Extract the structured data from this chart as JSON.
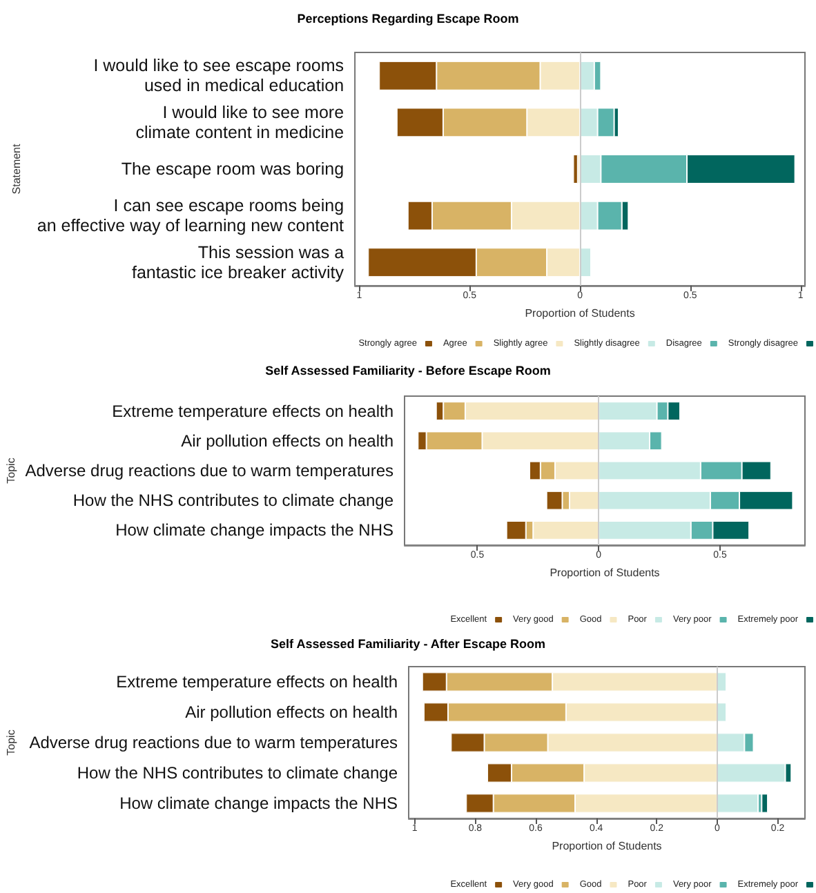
{
  "chart_data": [
    {
      "type": "bar",
      "orientation": "horizontal",
      "stacked": true,
      "title": "Perceptions Regarding Escape Room",
      "xlabel": "Proportion of Students",
      "ylabel": "Statement",
      "legend": "bottom right",
      "grid": false,
      "categories": [
        "I would like to see escape rooms\nused in medical education",
        "I would like to see more\nclimate content in medicine",
        "The escape room was boring",
        "I can see escape rooms being\nan effective way of learning new content",
        "This session was a\nfantastic ice breaker activity"
      ],
      "series": [
        {
          "name": "Strongly agree",
          "color": "#8c510a",
          "values": [
            -0.26,
            -0.21,
            -0.02,
            -0.11,
            -0.49
          ]
        },
        {
          "name": "Agree",
          "color": "#d8b365",
          "values": [
            -0.47,
            -0.38,
            null,
            -0.36,
            -0.32
          ]
        },
        {
          "name": "Slightly agree",
          "color": "#f6e8c3",
          "values": [
            -0.18,
            -0.24,
            -0.01,
            -0.31,
            -0.15
          ]
        },
        {
          "name": "Slightly disagree",
          "color": "#c7eae5",
          "values": [
            0.065,
            0.08,
            0.095,
            0.08,
            0.05
          ]
        },
        {
          "name": "Disagree",
          "color": "#5ab4ac",
          "values": [
            0.03,
            0.075,
            0.39,
            0.11,
            null
          ]
        },
        {
          "name": "Strongly disagree",
          "color": "#01665e",
          "values": [
            null,
            0.02,
            0.49,
            0.03,
            null
          ]
        }
      ],
      "xlim": [
        -1.02,
        1.02
      ],
      "xticks": [
        {
          "value": -1,
          "label": "1"
        },
        {
          "value": -0.5,
          "label": "0.5"
        },
        0,
        0.5,
        1
      ],
      "ref_lines": [
        {
          "axis": "x",
          "value": 0,
          "color": "#cccccc"
        }
      ]
    },
    {
      "type": "bar",
      "orientation": "horizontal",
      "stacked": true,
      "title": "Self Assessed Familiarity - Before Escape Room",
      "xlabel": "Proportion of Students",
      "ylabel": "Topic",
      "legend": "bottom right",
      "grid": false,
      "categories": [
        "Extreme temperature effects on health",
        "Air pollution effects on health",
        "Adverse drug reactions due to warm temperatures",
        "How the NHS contributes to climate change",
        "How climate change impacts the NHS"
      ],
      "series": [
        {
          "name": "Excellent",
          "color": "#8c510a",
          "values": [
            -0.03,
            -0.035,
            -0.045,
            -0.065,
            -0.08
          ]
        },
        {
          "name": "Very good",
          "color": "#d8b365",
          "values": [
            -0.09,
            -0.23,
            -0.06,
            -0.03,
            -0.03
          ]
        },
        {
          "name": "Good",
          "color": "#f6e8c3",
          "values": [
            -0.55,
            -0.48,
            -0.18,
            -0.12,
            -0.27
          ]
        },
        {
          "name": "Poor",
          "color": "#c7eae5",
          "values": [
            0.24,
            0.21,
            0.42,
            0.46,
            0.38
          ]
        },
        {
          "name": "Very poor",
          "color": "#5ab4ac",
          "values": [
            0.045,
            0.05,
            0.17,
            0.12,
            0.09
          ]
        },
        {
          "name": "Extremely poor",
          "color": "#01665e",
          "values": [
            0.05,
            null,
            0.12,
            0.22,
            0.15
          ]
        }
      ],
      "xlim": [
        -0.8,
        0.85
      ],
      "xticks": [
        {
          "value": -0.5,
          "label": "0.5"
        },
        0,
        0.5
      ],
      "ref_lines": [
        {
          "axis": "x",
          "value": 0,
          "color": "#cccccc"
        }
      ]
    },
    {
      "type": "bar",
      "orientation": "horizontal",
      "stacked": true,
      "title": "Self Assessed Familiarity - After Escape Room",
      "xlabel": "Proportion of Students",
      "ylabel": "Topic",
      "legend": "bottom right",
      "grid": false,
      "categories": [
        "Extreme temperature effects on health",
        "Air pollution effects on health",
        "Adverse drug reactions due to warm temperatures",
        "How the NHS contributes to climate change",
        "How climate change impacts the NHS"
      ],
      "series": [
        {
          "name": "Excellent",
          "color": "#8c510a",
          "values": [
            -0.08,
            -0.08,
            -0.11,
            -0.08,
            -0.09
          ]
        },
        {
          "name": "Very good",
          "color": "#d8b365",
          "values": [
            -0.35,
            -0.39,
            -0.21,
            -0.24,
            -0.27
          ]
        },
        {
          "name": "Good",
          "color": "#f6e8c3",
          "values": [
            -0.545,
            -0.5,
            -0.56,
            -0.44,
            -0.47
          ]
        },
        {
          "name": "Poor",
          "color": "#c7eae5",
          "values": [
            0.03,
            0.03,
            0.09,
            0.225,
            0.135
          ]
        },
        {
          "name": "Very poor",
          "color": "#5ab4ac",
          "values": [
            null,
            null,
            0.03,
            null,
            0.012
          ]
        },
        {
          "name": "Extremely poor",
          "color": "#01665e",
          "values": [
            null,
            null,
            null,
            0.02,
            0.02
          ]
        }
      ],
      "xlim": [
        -1.02,
        0.29
      ],
      "xticks": [
        {
          "value": -1,
          "label": "1"
        },
        {
          "value": -0.8,
          "label": "0.8"
        },
        {
          "value": -0.6,
          "label": "0.6"
        },
        {
          "value": -0.4,
          "label": "0.4"
        },
        {
          "value": -0.2,
          "label": "0.2"
        },
        0,
        0.2
      ],
      "ref_lines": [
        {
          "axis": "x",
          "value": 0,
          "color": "#cccccc"
        }
      ]
    }
  ]
}
